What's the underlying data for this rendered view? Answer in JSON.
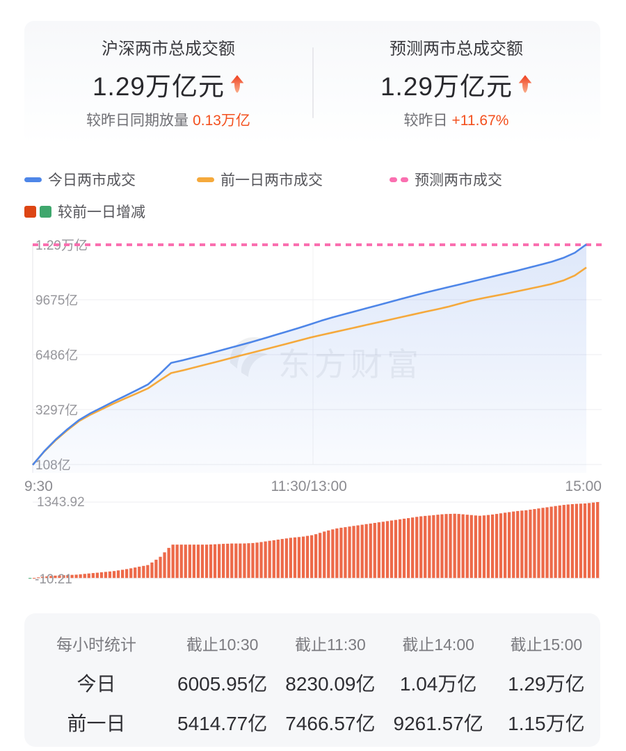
{
  "stat_card": {
    "left": {
      "title": "沪深两市总成交额",
      "value": "1.29万亿元",
      "trend": "up",
      "sub_label": "较昨日同期放量",
      "sub_value": "0.13万亿"
    },
    "right": {
      "title": "预测两市总成交额",
      "value": "1.29万亿元",
      "trend": "up",
      "sub_label": "较昨日",
      "sub_value": "+11.67%"
    }
  },
  "legend": {
    "today": "今日两市成交",
    "prev": "前一日两市成交",
    "forecast": "预测两市成交",
    "diff": "较前一日增减"
  },
  "watermark": "东方财富",
  "colors": {
    "today_line": "#4e86e8",
    "prev_line": "#f5a93c",
    "forecast_line": "#fa6fb0",
    "bar_positive": "#ed6a4a",
    "bar_negative": "#3fa76d",
    "legend_diff_red": "#dd4514",
    "legend_diff_green": "#3fa76d",
    "accent_red": "#f3501e",
    "grid": "#ececf0"
  },
  "chart_data": [
    {
      "type": "area",
      "x_axis": {
        "labels": [
          "9:30",
          "11:30/13:00",
          "15:00"
        ],
        "t_start": 0,
        "t_end": 240,
        "t_step": 5
      },
      "y_axis": {
        "min": 108,
        "max": 12864,
        "ticks": [
          {
            "value": 12864,
            "label": "1.29万亿"
          },
          {
            "value": 9675,
            "label": "9675亿"
          },
          {
            "value": 6486,
            "label": "6486亿"
          },
          {
            "value": 3297,
            "label": "3297亿"
          },
          {
            "value": 108,
            "label": "108亿"
          }
        ]
      },
      "series": [
        {
          "name": "今日两市成交",
          "style": "solid",
          "values": [
            80,
            880,
            1560,
            2150,
            2680,
            3080,
            3420,
            3760,
            4090,
            4420,
            4760,
            5350,
            6006,
            6160,
            6330,
            6500,
            6680,
            6860,
            7040,
            7220,
            7420,
            7620,
            7820,
            8020,
            8230,
            8450,
            8650,
            8830,
            9010,
            9190,
            9370,
            9550,
            9730,
            9910,
            10080,
            10240,
            10400,
            10560,
            10720,
            10880,
            11040,
            11200,
            11360,
            11530,
            11700,
            11880,
            12100,
            12400,
            12890
          ]
        },
        {
          "name": "前一日两市成交",
          "style": "solid",
          "values": [
            90.21,
            860,
            1520,
            2100,
            2620,
            3000,
            3320,
            3640,
            3940,
            4230,
            4530,
            4980,
            5415,
            5570,
            5740,
            5910,
            6080,
            6250,
            6430,
            6600,
            6770,
            6940,
            7110,
            7290,
            7467,
            7620,
            7770,
            7920,
            8070,
            8220,
            8370,
            8520,
            8670,
            8820,
            8970,
            9110,
            9262,
            9440,
            9620,
            9760,
            9890,
            10020,
            10160,
            10300,
            10440,
            10590,
            10790,
            11080,
            11546
          ]
        },
        {
          "name": "预测两市成交",
          "style": "dashed",
          "constant_value": 12864
        }
      ],
      "legend_position": "top",
      "grid": true
    },
    {
      "type": "bar",
      "name": "较前一日增减",
      "derived": "today_minus_prev",
      "max": 1343.92,
      "min": -10.21,
      "max_label": "1343.92",
      "min_label": "-10.21"
    }
  ],
  "table": {
    "headers": [
      "每小时统计",
      "截止10:30",
      "截止11:30",
      "截止14:00",
      "截止15:00"
    ],
    "rows": [
      {
        "label": "今日",
        "values": [
          "6005.95亿",
          "8230.09亿",
          "1.04万亿",
          "1.29万亿"
        ]
      },
      {
        "label": "前一日",
        "values": [
          "5414.77亿",
          "7466.57亿",
          "9261.57亿",
          "1.15万亿"
        ]
      }
    ]
  }
}
